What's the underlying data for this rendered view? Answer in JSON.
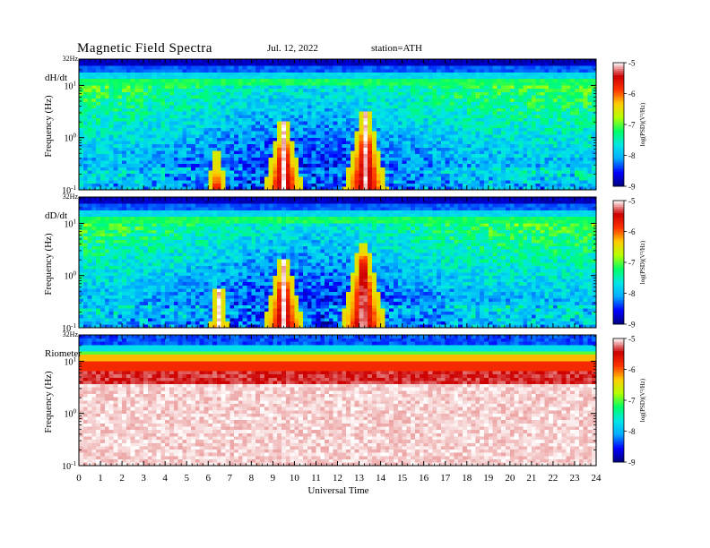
{
  "header": {
    "title": "Magnetic Field Spectra",
    "date": "Jul. 12, 2022",
    "station": "station=ATH"
  },
  "chart_data": {
    "type": "heatmap",
    "x_axis": {
      "label": "Universal Time",
      "range": [
        0,
        24
      ],
      "ticks": [
        "0",
        "1",
        "2",
        "3",
        "4",
        "5",
        "6",
        "7",
        "8",
        "9",
        "10",
        "11",
        "12",
        "13",
        "14",
        "15",
        "16",
        "17",
        "18",
        "19",
        "20",
        "21",
        "22",
        "23",
        "24"
      ]
    },
    "colormap": [
      "#000080",
      "#0000ff",
      "#00aaff",
      "#00e6e6",
      "#00ff66",
      "#b4ff00",
      "#ffcc00",
      "#ff3300",
      "#cc0000",
      "#ffffff"
    ],
    "panels": [
      {
        "name": "dH/dt",
        "ylabel": "Frequency (Hz)",
        "yscale": "log",
        "ylim": [
          0.1,
          32
        ],
        "top_label": "32Hz",
        "y_ticks": [
          {
            "base": "10",
            "exp": "-1",
            "value": 0.1
          },
          {
            "base": "10",
            "exp": "0",
            "value": 1
          },
          {
            "base": "10",
            "exp": "1",
            "value": 10
          }
        ],
        "colorbar": {
          "label": "log(PSD)(V²/Hz)",
          "range": [
            -9,
            -5
          ],
          "ticks": [
            "-5",
            "-6",
            "-7",
            "-8",
            "-9"
          ]
        },
        "enhancements": [
          {
            "center_ut": 9.5,
            "half_width_h": 0.75,
            "peak_freq_hz": 2.0
          },
          {
            "center_ut": 13.3,
            "half_width_h": 0.85,
            "peak_freq_hz": 3.0
          },
          {
            "center_ut": 6.4,
            "half_width_h": 0.2,
            "peak_freq_hz": 0.6
          }
        ]
      },
      {
        "name": "dD/dt",
        "ylabel": "Frequency (Hz)",
        "yscale": "log",
        "ylim": [
          0.1,
          32
        ],
        "top_label": "32Hz",
        "y_ticks": [
          {
            "base": "10",
            "exp": "-1",
            "value": 0.1
          },
          {
            "base": "10",
            "exp": "0",
            "value": 1
          },
          {
            "base": "10",
            "exp": "1",
            "value": 10
          }
        ],
        "colorbar": {
          "label": "log(PSD)(V²/Hz)",
          "range": [
            -9,
            -5
          ],
          "ticks": [
            "-5",
            "-6",
            "-7",
            "-8",
            "-9"
          ]
        },
        "enhancements": [
          {
            "center_ut": 9.5,
            "half_width_h": 0.8,
            "peak_freq_hz": 2.0
          },
          {
            "center_ut": 13.2,
            "half_width_h": 0.9,
            "peak_freq_hz": 4.0
          },
          {
            "center_ut": 6.5,
            "half_width_h": 0.25,
            "peak_freq_hz": 0.6
          }
        ]
      },
      {
        "name": "Riometer",
        "ylabel": "Frequency (Hz)",
        "yscale": "log",
        "ylim": [
          0.1,
          32
        ],
        "top_label": "32Hz",
        "y_ticks": [
          {
            "base": "10",
            "exp": "-1",
            "value": 0.1
          },
          {
            "base": "10",
            "exp": "0",
            "value": 1
          },
          {
            "base": "10",
            "exp": "1",
            "value": 10
          }
        ],
        "colorbar": {
          "label": "log(PSD)(V²/Hz)",
          "range": [
            -9,
            -5
          ],
          "ticks": [
            "-5",
            "-6",
            "-7",
            "-8",
            "-9"
          ]
        },
        "enhancements": []
      }
    ]
  }
}
